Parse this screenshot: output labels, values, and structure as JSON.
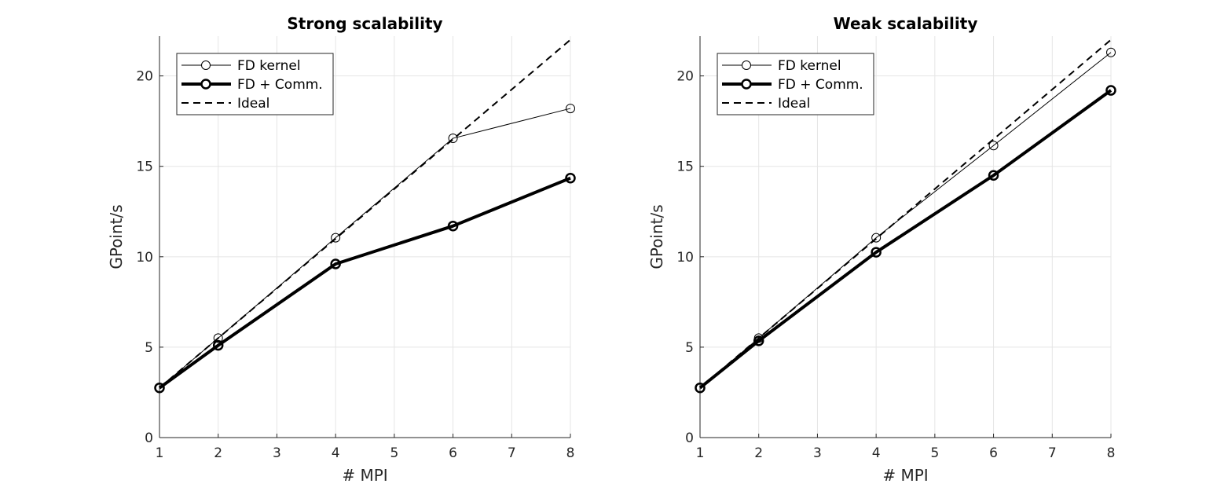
{
  "chart_data": [
    {
      "type": "line",
      "title": "Strong scalability",
      "xlabel": "# MPI",
      "ylabel": "GPoint/s",
      "xlim": [
        1,
        8
      ],
      "ylim": [
        0,
        22.2
      ],
      "xticks": [
        1,
        2,
        3,
        4,
        5,
        6,
        7,
        8
      ],
      "yticks": [
        0,
        5,
        10,
        15,
        20
      ],
      "grid": true,
      "legend_position": "top-left",
      "series": [
        {
          "name": "FD kernel",
          "x": [
            1,
            2,
            4,
            6,
            8
          ],
          "y": [
            2.75,
            5.5,
            11.05,
            16.55,
            18.2
          ],
          "line": "solid",
          "width": 1,
          "marker": "circle"
        },
        {
          "name": "FD + Comm.",
          "x": [
            1,
            2,
            4,
            6,
            8
          ],
          "y": [
            2.75,
            5.1,
            9.6,
            11.7,
            14.35
          ],
          "line": "solid",
          "width": 4,
          "marker": "circle"
        },
        {
          "name": "Ideal",
          "x": [
            1,
            2,
            4,
            6,
            8
          ],
          "y": [
            2.75,
            5.5,
            11.0,
            16.5,
            22.0
          ],
          "line": "dashed",
          "width": 2,
          "marker": "none"
        }
      ]
    },
    {
      "type": "line",
      "title": "Weak scalability",
      "xlabel": "# MPI",
      "ylabel": "GPoint/s",
      "xlim": [
        1,
        8
      ],
      "ylim": [
        0,
        22.2
      ],
      "xticks": [
        1,
        2,
        3,
        4,
        5,
        6,
        7,
        8
      ],
      "yticks": [
        0,
        5,
        10,
        15,
        20
      ],
      "grid": true,
      "legend_position": "top-left",
      "series": [
        {
          "name": "FD kernel",
          "x": [
            1,
            2,
            4,
            6,
            8
          ],
          "y": [
            2.75,
            5.5,
            11.05,
            16.15,
            21.3
          ],
          "line": "solid",
          "width": 1,
          "marker": "circle"
        },
        {
          "name": "FD + Comm.",
          "x": [
            1,
            2,
            4,
            6,
            8
          ],
          "y": [
            2.75,
            5.35,
            10.25,
            14.5,
            19.2
          ],
          "line": "solid",
          "width": 4,
          "marker": "circle"
        },
        {
          "name": "Ideal",
          "x": [
            1,
            2,
            4,
            6,
            8
          ],
          "y": [
            2.75,
            5.5,
            11.0,
            16.5,
            22.0
          ],
          "line": "dashed",
          "width": 2,
          "marker": "none"
        }
      ]
    }
  ]
}
